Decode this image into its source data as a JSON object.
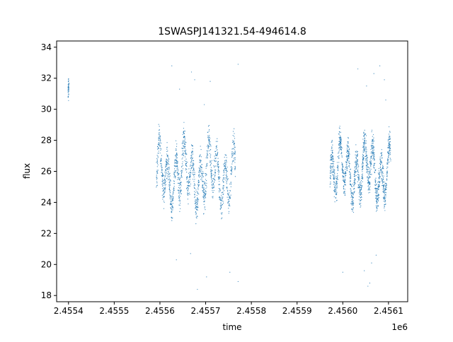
{
  "chart_data": {
    "type": "scatter",
    "title": "1SWASPJ141321.54-494614.8",
    "xlabel": "time",
    "ylabel": "flux",
    "x_offset_label": "1e6",
    "xlim": [
      2455374,
      2456142
    ],
    "ylim": [
      17.6,
      34.4
    ],
    "x_ticks": [
      2455400,
      2455500,
      2455600,
      2455700,
      2455800,
      2455900,
      2456000,
      2456100
    ],
    "x_tick_labels": [
      "2.4554",
      "2.4555",
      "2.4556",
      "2.4557",
      "2.4558",
      "2.4559",
      "2.4560",
      "2.4561"
    ],
    "y_ticks": [
      18,
      20,
      22,
      24,
      26,
      28,
      30,
      32,
      34
    ],
    "y_tick_labels": [
      "18",
      "20",
      "22",
      "24",
      "26",
      "28",
      "30",
      "32",
      "34"
    ],
    "grid": false,
    "legend": "none",
    "marker_color": "#1f77b4",
    "segments": [
      {
        "x_start": 2455399,
        "x_end": 2455401,
        "flux_center": 31.0,
        "flux_spread": 1.2,
        "n_points": 40
      },
      {
        "x_start": 2455592,
        "x_end": 2455765,
        "flux_center": 25.8,
        "flux_spread": 1.6,
        "n_points": 1400
      },
      {
        "x_start": 2455972,
        "x_end": 2456105,
        "flux_center": 26.0,
        "flux_spread": 1.5,
        "n_points": 1400
      }
    ],
    "outliers": [
      {
        "x": 2455626,
        "y": 32.8
      },
      {
        "x": 2455643,
        "y": 31.3
      },
      {
        "x": 2455669,
        "y": 32.4
      },
      {
        "x": 2455676,
        "y": 31.9
      },
      {
        "x": 2455697,
        "y": 30.3
      },
      {
        "x": 2455710,
        "y": 31.8
      },
      {
        "x": 2455771,
        "y": 32.9
      },
      {
        "x": 2455636,
        "y": 20.3
      },
      {
        "x": 2455667,
        "y": 20.7
      },
      {
        "x": 2455682,
        "y": 18.4
      },
      {
        "x": 2455702,
        "y": 19.2
      },
      {
        "x": 2455771,
        "y": 18.9
      },
      {
        "x": 2455753,
        "y": 19.5
      },
      {
        "x": 2456033,
        "y": 32.6
      },
      {
        "x": 2456052,
        "y": 31.5
      },
      {
        "x": 2456068,
        "y": 32.3
      },
      {
        "x": 2456081,
        "y": 32.8
      },
      {
        "x": 2456091,
        "y": 31.9
      },
      {
        "x": 2456094,
        "y": 30.6
      },
      {
        "x": 2456047,
        "y": 19.6
      },
      {
        "x": 2456055,
        "y": 18.6
      },
      {
        "x": 2456063,
        "y": 20.1
      },
      {
        "x": 2456059,
        "y": 18.8
      },
      {
        "x": 2456000,
        "y": 19.5
      },
      {
        "x": 2456073,
        "y": 20.6
      }
    ]
  }
}
